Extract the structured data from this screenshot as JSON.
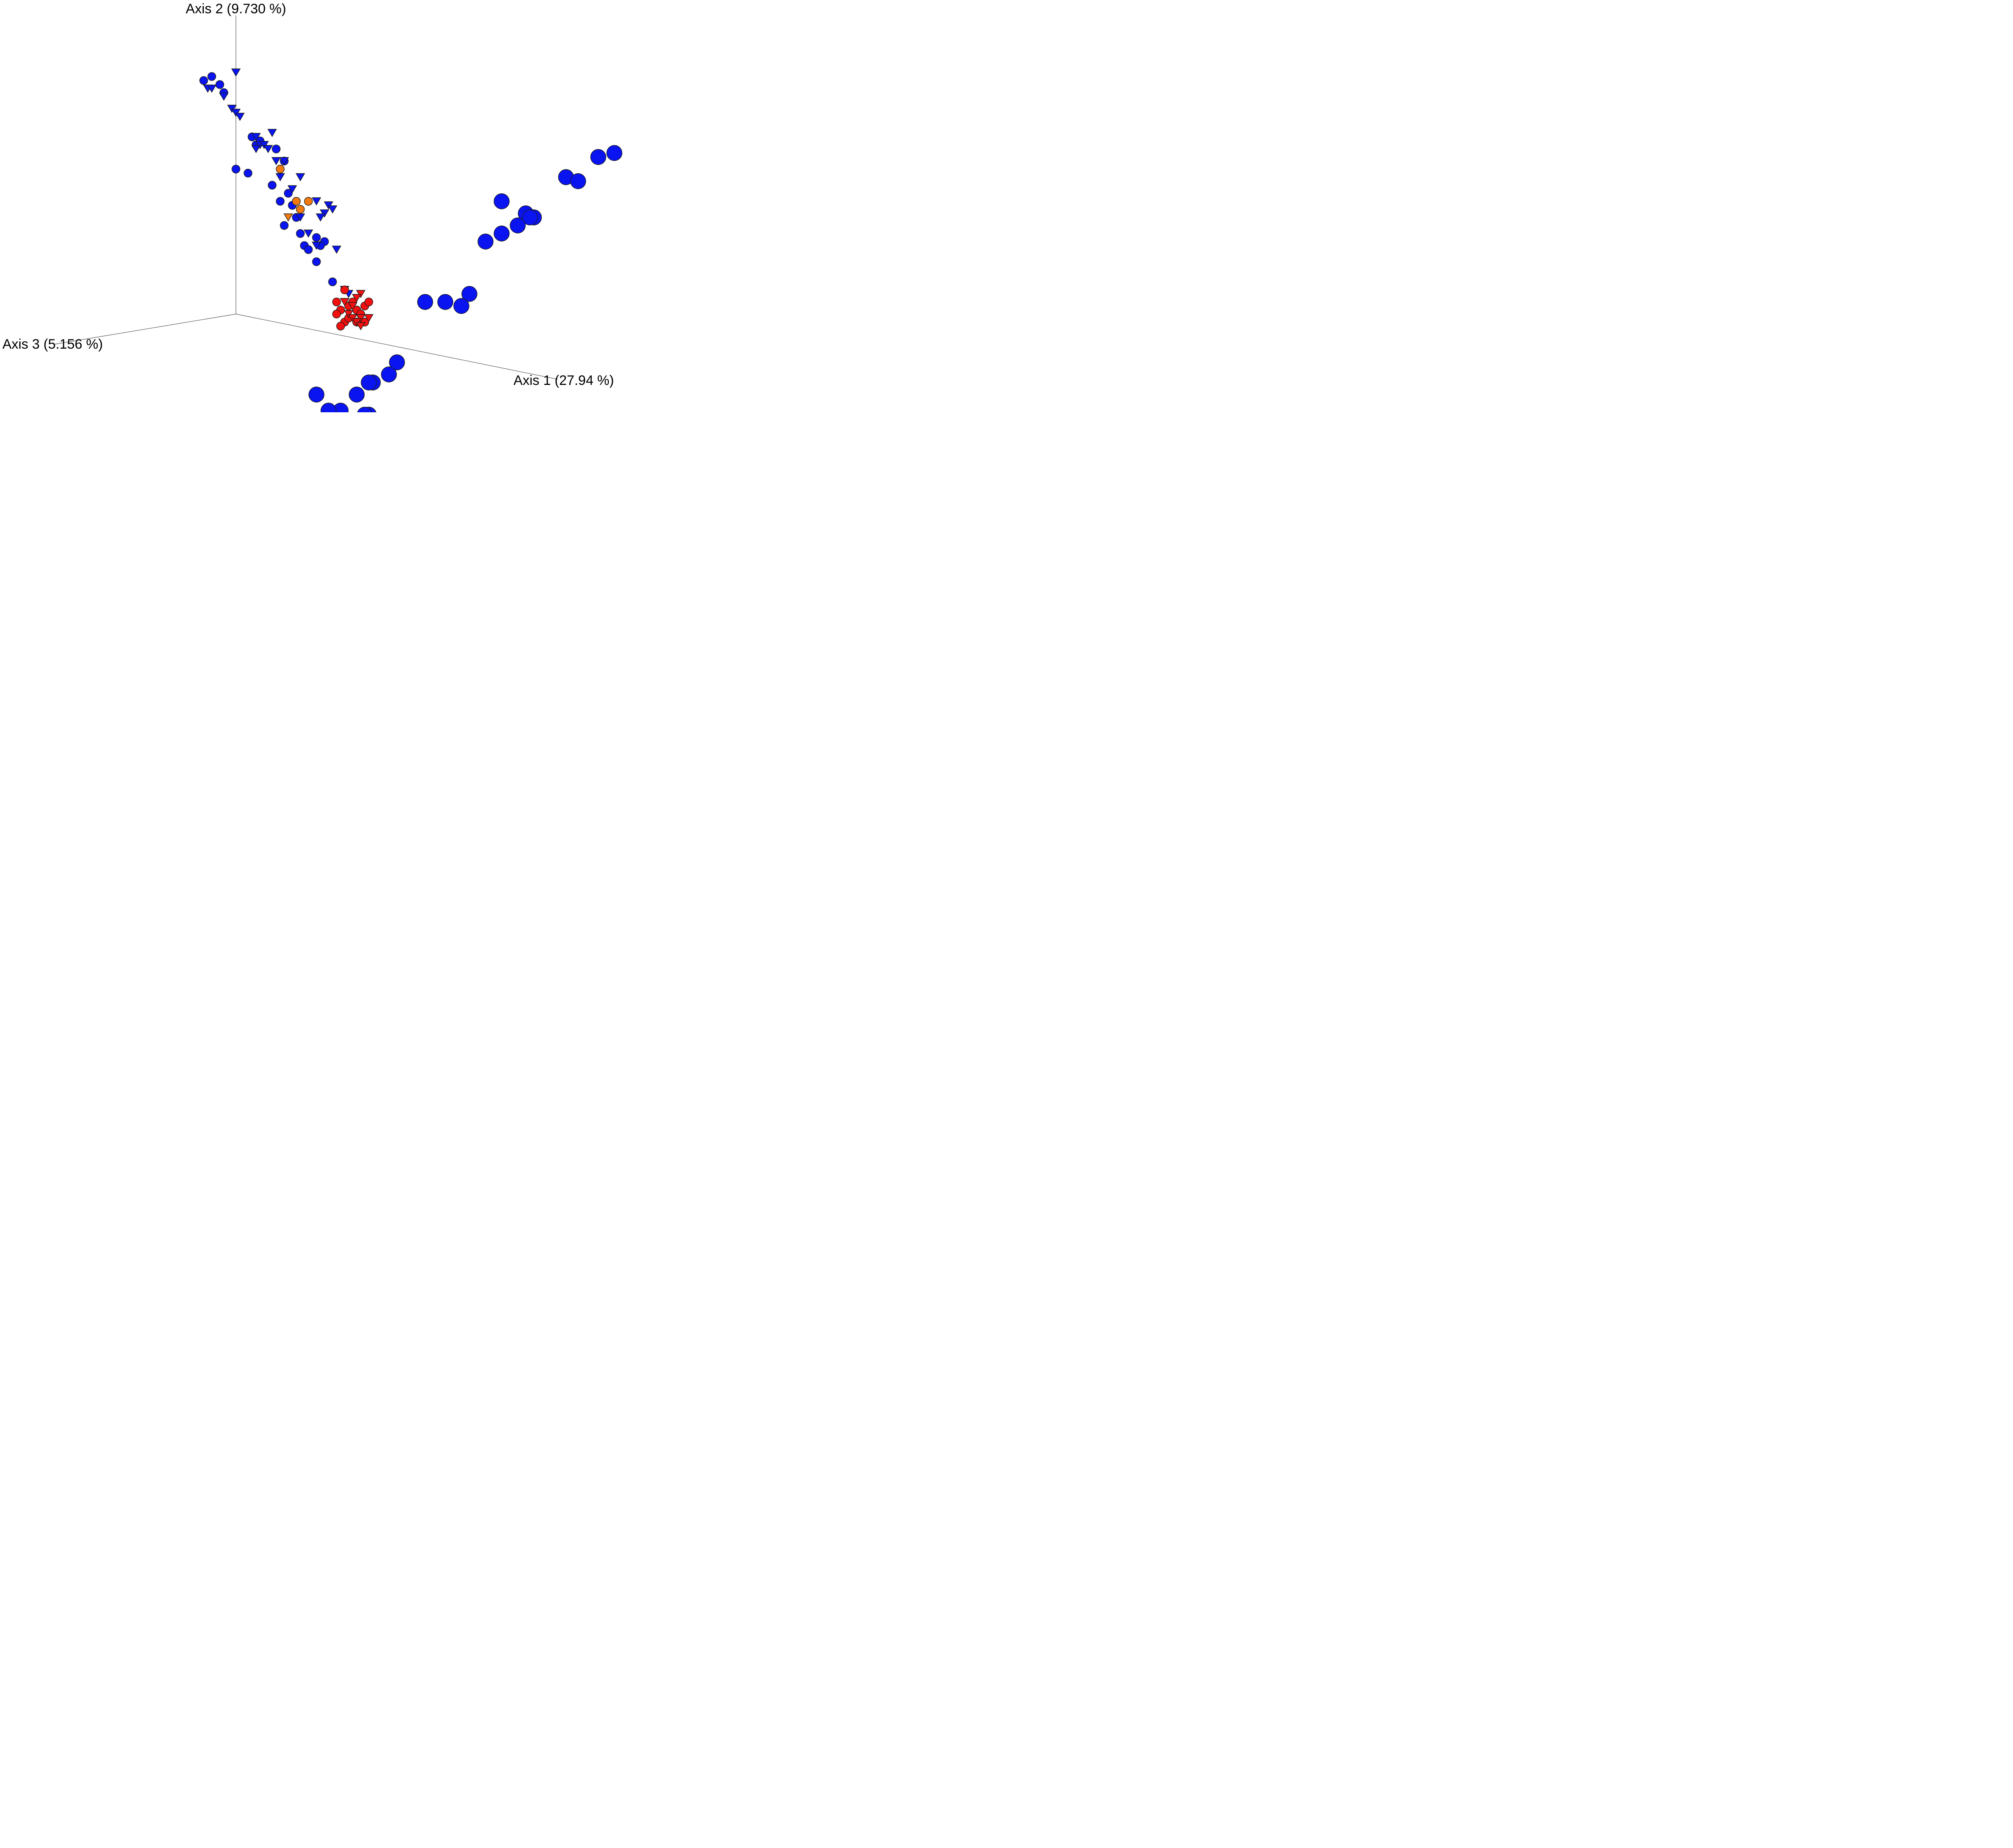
{
  "chart_data": {
    "type": "scatter",
    "projection": "3d",
    "axes": {
      "x": {
        "label": "Axis 1 (27.94 %)"
      },
      "y": {
        "label": "Axis 2 (9.730 %)"
      },
      "z": {
        "label": "Axis 3 (5.156 %)"
      }
    },
    "grid": false,
    "legend": "none",
    "colors": {
      "blue": "#0a14f0",
      "red": "#f01010",
      "orange": "#f07a10"
    },
    "series": [
      {
        "marker": "circle",
        "color": "blue",
        "size": "small",
        "points": [
          [
            -0.08,
            0.58
          ],
          [
            -0.06,
            0.59
          ],
          [
            -0.04,
            0.57
          ],
          [
            -0.03,
            0.55
          ],
          [
            0.04,
            0.44
          ],
          [
            0.05,
            0.42
          ],
          [
            0.06,
            0.43
          ],
          [
            0.1,
            0.41
          ],
          [
            0.12,
            0.38
          ],
          [
            0.0,
            0.36
          ],
          [
            0.03,
            0.35
          ],
          [
            0.09,
            0.32
          ],
          [
            0.13,
            0.3
          ],
          [
            0.11,
            0.28
          ],
          [
            0.14,
            0.27
          ],
          [
            0.15,
            0.24
          ],
          [
            0.12,
            0.22
          ],
          [
            0.16,
            0.2
          ],
          [
            0.2,
            0.19
          ],
          [
            0.22,
            0.18
          ],
          [
            0.17,
            0.17
          ],
          [
            0.18,
            0.16
          ],
          [
            0.21,
            0.17
          ],
          [
            0.2,
            0.13
          ],
          [
            0.24,
            0.08
          ]
        ]
      },
      {
        "marker": "triangle-down",
        "color": "blue",
        "size": "small",
        "points": [
          [
            0.0,
            0.6
          ],
          [
            -0.07,
            0.56
          ],
          [
            -0.06,
            0.56
          ],
          [
            -0.03,
            0.54
          ],
          [
            -0.01,
            0.51
          ],
          [
            0.0,
            0.5
          ],
          [
            0.01,
            0.49
          ],
          [
            0.05,
            0.44
          ],
          [
            0.09,
            0.45
          ],
          [
            0.06,
            0.42
          ],
          [
            0.07,
            0.42
          ],
          [
            0.05,
            0.41
          ],
          [
            0.08,
            0.41
          ],
          [
            0.1,
            0.38
          ],
          [
            0.12,
            0.38
          ],
          [
            0.11,
            0.34
          ],
          [
            0.16,
            0.34
          ],
          [
            0.14,
            0.31
          ],
          [
            0.2,
            0.28
          ],
          [
            0.23,
            0.27
          ],
          [
            0.24,
            0.26
          ],
          [
            0.22,
            0.25
          ],
          [
            0.21,
            0.24
          ],
          [
            0.16,
            0.24
          ],
          [
            0.18,
            0.2
          ],
          [
            0.2,
            0.17
          ],
          [
            0.25,
            0.16
          ],
          [
            0.27,
            0.06
          ],
          [
            0.28,
            0.05
          ]
        ]
      },
      {
        "marker": "circle",
        "color": "orange",
        "size": "small",
        "points": [
          [
            0.11,
            0.36
          ],
          [
            0.15,
            0.28
          ],
          [
            0.18,
            0.28
          ],
          [
            0.16,
            0.26
          ]
        ]
      },
      {
        "marker": "triangle-down",
        "color": "orange",
        "size": "small",
        "points": [
          [
            0.13,
            0.24
          ]
        ]
      },
      {
        "marker": "circle",
        "color": "red",
        "size": "small",
        "points": [
          [
            0.27,
            0.06
          ],
          [
            0.25,
            0.03
          ],
          [
            0.26,
            0.01
          ],
          [
            0.28,
            0.02
          ],
          [
            0.29,
            0.03
          ],
          [
            0.3,
            0.01
          ],
          [
            0.31,
            0.0
          ],
          [
            0.32,
            0.02
          ],
          [
            0.33,
            0.03
          ],
          [
            0.25,
            0.0
          ],
          [
            0.27,
            -0.02
          ],
          [
            0.28,
            -0.01
          ],
          [
            0.3,
            -0.02
          ],
          [
            0.32,
            -0.02
          ],
          [
            0.26,
            -0.03
          ]
        ]
      },
      {
        "marker": "triangle-down",
        "color": "red",
        "size": "small",
        "points": [
          [
            0.31,
            0.05
          ],
          [
            0.3,
            0.04
          ],
          [
            0.27,
            0.03
          ],
          [
            0.28,
            0.0
          ],
          [
            0.29,
            0.02
          ],
          [
            0.31,
            -0.01
          ],
          [
            0.33,
            -0.01
          ],
          [
            0.29,
            -0.01
          ],
          [
            0.3,
            -0.02
          ],
          [
            0.31,
            -0.03
          ]
        ]
      },
      {
        "marker": "circle",
        "color": "blue",
        "size": "large",
        "points": [
          [
            0.94,
            0.4
          ],
          [
            0.9,
            0.39
          ],
          [
            0.82,
            0.34
          ],
          [
            0.85,
            0.33
          ],
          [
            0.66,
            0.28
          ],
          [
            0.72,
            0.25
          ],
          [
            0.74,
            0.24
          ],
          [
            0.73,
            0.24
          ],
          [
            0.7,
            0.22
          ],
          [
            0.66,
            0.2
          ],
          [
            0.62,
            0.18
          ],
          [
            0.58,
            0.05
          ],
          [
            0.52,
            0.03
          ],
          [
            0.47,
            0.03
          ],
          [
            0.56,
            0.02
          ],
          [
            0.4,
            -0.12
          ],
          [
            0.38,
            -0.15
          ],
          [
            0.34,
            -0.17
          ],
          [
            0.33,
            -0.17
          ],
          [
            0.3,
            -0.2
          ],
          [
            0.2,
            -0.2
          ],
          [
            0.26,
            -0.24
          ],
          [
            0.23,
            -0.24
          ],
          [
            0.33,
            -0.25
          ],
          [
            0.32,
            -0.25
          ],
          [
            0.22,
            -0.27
          ],
          [
            0.24,
            -0.27
          ],
          [
            0.21,
            -0.29
          ],
          [
            0.29,
            -0.3
          ]
        ]
      }
    ]
  }
}
